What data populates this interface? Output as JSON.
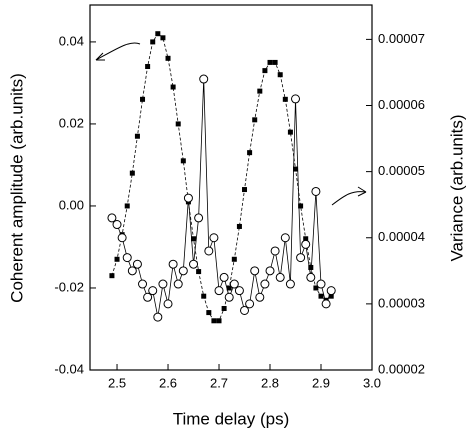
{
  "chart_data": {
    "type": "line",
    "xlabel": "Time delay (ps)",
    "ylabel": "Coherent amplitude (arb.units)",
    "y2label": "Variance (arb.units)",
    "xlim": [
      2.447,
      3.0
    ],
    "xticks": [
      2.5,
      2.6,
      2.7,
      2.8,
      2.9,
      {
        "value": 3.0,
        "label": "3.0"
      }
    ],
    "ylim": [
      -0.04,
      0.049
    ],
    "yticks": [
      {
        "value": -0.04,
        "label": "-0.04"
      },
      {
        "value": -0.02,
        "label": "-0.02"
      },
      {
        "value": 0,
        "label": "0.00"
      },
      {
        "value": 0.02,
        "label": "0.02"
      },
      {
        "value": 0.04,
        "label": "0.04"
      }
    ],
    "y2lim": [
      2e-05,
      7.52e-05
    ],
    "y2ticks": [
      2e-05,
      3e-05,
      4e-05,
      5e-05,
      6e-05,
      7e-05
    ],
    "x": [
      2.49,
      2.5,
      2.51,
      2.52,
      2.53,
      2.54,
      2.55,
      2.56,
      2.57,
      2.58,
      2.59,
      2.6,
      2.61,
      2.62,
      2.63,
      2.64,
      2.65,
      2.66,
      2.67,
      2.68,
      2.69,
      2.7,
      2.71,
      2.72,
      2.73,
      2.74,
      2.75,
      2.76,
      2.77,
      2.78,
      2.79,
      2.8,
      2.81,
      2.82,
      2.83,
      2.84,
      2.85,
      2.86,
      2.87,
      2.88,
      2.89,
      2.9,
      2.91,
      2.92
    ],
    "series": [
      {
        "color": "#000000",
        "marker": "square",
        "values": [
          -0.017,
          -0.013,
          -0.007,
          0.0,
          0.008,
          0.017,
          0.026,
          0.034,
          0.04,
          0.042,
          0.041,
          0.036,
          0.029,
          0.02,
          0.011,
          0.001,
          -0.008,
          -0.016,
          -0.022,
          -0.026,
          -0.028,
          -0.028,
          -0.025,
          -0.02,
          -0.013,
          -0.005,
          0.004,
          0.013,
          0.021,
          0.028,
          0.033,
          0.035,
          0.035,
          0.032,
          0.026,
          0.018,
          0.009,
          0.0,
          -0.008,
          -0.015,
          -0.02,
          -0.022,
          -0.023,
          -0.022
        ]
      },
      {
        "color": "#000000",
        "marker": "circle",
        "axis": "y2",
        "values": [
          4.3e-05,
          4.2e-05,
          4e-05,
          3.7e-05,
          3.5e-05,
          3.6e-05,
          3.3e-05,
          3.1e-05,
          3.2e-05,
          2.8e-05,
          3.3e-05,
          3e-05,
          3.6e-05,
          3.3e-05,
          3.5e-05,
          4.6e-05,
          3.6e-05,
          4.3e-05,
          6.4e-05,
          3.8e-05,
          4e-05,
          3.2e-05,
          3.4e-05,
          3.1e-05,
          3.3e-05,
          3.2e-05,
          2.9e-05,
          3e-05,
          3.5e-05,
          3.1e-05,
          3.3e-05,
          3.5e-05,
          3.8e-05,
          3.4e-05,
          4e-05,
          3.3e-05,
          6.1e-05,
          3.7e-05,
          3.9e-05,
          3.4e-05,
          4.7e-05,
          3.3e-05,
          3e-05,
          3.2e-05
        ]
      }
    ]
  }
}
